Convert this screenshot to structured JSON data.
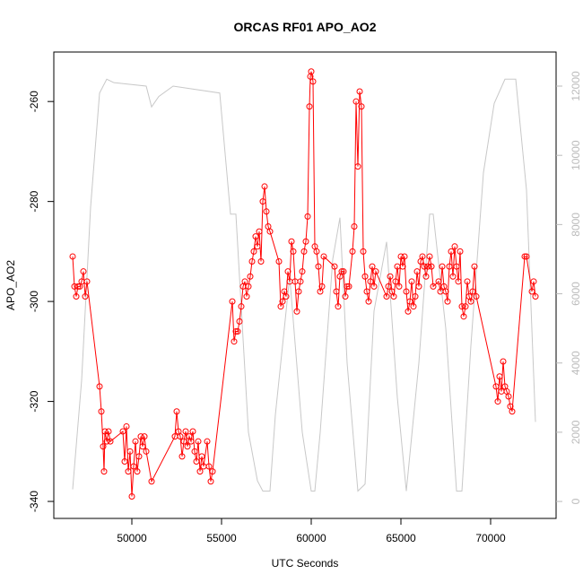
{
  "chart_data": {
    "type": "line",
    "title": "ORCAS RF01 APO_AO2",
    "xlabel": "UTC Seconds",
    "ylabel": "APO_AO2",
    "xlim": [
      45650,
      73650
    ],
    "xticks": [
      50000,
      55000,
      60000,
      65000,
      70000
    ],
    "ylim": [
      -343.4,
      -250.1
    ],
    "yticks": [
      -340,
      -320,
      -300,
      -280,
      -260
    ],
    "y2lim": [
      -490,
      12985
    ],
    "y2ticks": [
      0,
      2000,
      4000,
      6000,
      8000,
      10000,
      12000
    ],
    "series": [
      {
        "color": "#ff0000",
        "markers": true,
        "x": [
          46700,
          46800,
          46900,
          47000,
          47100,
          47200,
          47300,
          47400,
          47500,
          48200,
          48300,
          48400,
          48450,
          48500,
          48600,
          48700,
          48800,
          49500,
          49600,
          49700,
          49800,
          49900,
          50000,
          50100,
          50200,
          50300,
          50400,
          50500,
          50600,
          50700,
          50800,
          51100,
          52400,
          52500,
          52600,
          52700,
          52800,
          52900,
          53000,
          53100,
          53200,
          53300,
          53400,
          53500,
          53600,
          53700,
          53800,
          53900,
          54000,
          54200,
          54300,
          54400,
          54500,
          55600,
          55700,
          55800,
          55900,
          56000,
          56100,
          56200,
          56300,
          56400,
          56500,
          56600,
          56700,
          56800,
          56900,
          57000,
          57100,
          57200,
          57300,
          57400,
          57500,
          57600,
          57700,
          58200,
          58300,
          58400,
          58500,
          58600,
          58700,
          58800,
          58900,
          59000,
          59100,
          59200,
          59300,
          59400,
          59500,
          59600,
          59700,
          59800,
          59900,
          59950,
          60000,
          60100,
          60200,
          60300,
          60400,
          60500,
          60600,
          60700,
          61300,
          61400,
          61500,
          61600,
          61700,
          61800,
          61900,
          62000,
          62100,
          62300,
          62400,
          62500,
          62600,
          62700,
          62800,
          62900,
          63000,
          63100,
          63200,
          63300,
          63400,
          63500,
          63600,
          64200,
          64300,
          64400,
          64500,
          64600,
          64700,
          64800,
          64900,
          65000,
          65100,
          65200,
          65300,
          65400,
          65500,
          65600,
          65700,
          65800,
          65900,
          66000,
          66100,
          66200,
          66300,
          66400,
          66500,
          66600,
          66700,
          66800,
          67100,
          67200,
          67300,
          67400,
          67500,
          67600,
          67700,
          67800,
          67900,
          68000,
          68100,
          68200,
          68300,
          68400,
          68500,
          68600,
          68700,
          68800,
          68900,
          69000,
          69100,
          69200,
          70300,
          70400,
          70500,
          70600,
          70700,
          70800,
          70900,
          71000,
          71100,
          71200,
          71900,
          72000,
          72300,
          72400,
          72500
        ],
        "values": [
          -291,
          -297,
          -299,
          -297,
          -297,
          -296,
          -294,
          -299,
          -296,
          -317,
          -322,
          -329,
          -334,
          -326,
          -328,
          -326,
          -328,
          -326,
          -332,
          -325,
          -334,
          -330,
          -339,
          -333,
          -328,
          -334,
          -331,
          -327,
          -329,
          -327,
          -330,
          -336,
          -327,
          -322,
          -326,
          -327,
          -331,
          -328,
          -326,
          -329,
          -327,
          -328,
          -326,
          -330,
          -332,
          -328,
          -334,
          -331,
          -333,
          -328,
          -333,
          -336,
          -334,
          -300,
          -308,
          -306,
          -306,
          -304,
          -301,
          -297,
          -296,
          -299,
          -297,
          -295,
          -292,
          -290,
          -287,
          -289,
          -286,
          -292,
          -280,
          -277,
          -282,
          -285,
          -286,
          -292,
          -301,
          -300,
          -298,
          -299,
          -294,
          -296,
          -288,
          -290,
          -296,
          -302,
          -298,
          -296,
          -294,
          -290,
          -288,
          -283,
          -261,
          -255,
          -254,
          -256,
          -289,
          -290,
          -293,
          -298,
          -297,
          -291,
          -293,
          -298,
          -301,
          -295,
          -294,
          -294,
          -299,
          -297,
          -297,
          -290,
          -285,
          -260,
          -273,
          -258,
          -261,
          -290,
          -295,
          -298,
          -300,
          -296,
          -293,
          -297,
          -294,
          -299,
          -297,
          -295,
          -298,
          -299,
          -296,
          -293,
          -297,
          -291,
          -293,
          -291,
          -298,
          -302,
          -300,
          -296,
          -301,
          -299,
          -294,
          -297,
          -292,
          -291,
          -293,
          -295,
          -293,
          -291,
          -293,
          -297,
          -296,
          -298,
          -293,
          -297,
          -298,
          -300,
          -293,
          -290,
          -295,
          -289,
          -293,
          -296,
          -290,
          -301,
          -303,
          -301,
          -296,
          -299,
          -300,
          -298,
          -293,
          -299,
          -317,
          -320,
          -315,
          -318,
          -312,
          -317,
          -318,
          -319,
          -321,
          -322,
          -291,
          -291,
          -298,
          -296,
          -299
        ]
      },
      {
        "color": "#c8c8c8",
        "axis": "y2",
        "markers": false,
        "x": [
          46700,
          47200,
          47700,
          48200,
          48600,
          49000,
          50800,
          51100,
          51500,
          52300,
          54900,
          55500,
          55800,
          56500,
          57000,
          57300,
          57700,
          58000,
          58800,
          59500,
          60000,
          60200,
          60500,
          61200,
          61600,
          62000,
          62600,
          63000,
          63500,
          64200,
          64800,
          65300,
          66000,
          66600,
          66800,
          67500,
          68100,
          68400,
          68900,
          69600,
          70200,
          70800,
          71400,
          72000,
          72500
        ],
        "values": [
          350,
          3500,
          8500,
          11800,
          12200,
          12100,
          12000,
          11400,
          11700,
          12000,
          11800,
          8300,
          8300,
          2000,
          600,
          300,
          300,
          2500,
          6500,
          2000,
          300,
          300,
          2000,
          7000,
          8200,
          4000,
          300,
          500,
          5500,
          7500,
          3000,
          300,
          4000,
          8300,
          8300,
          5000,
          300,
          300,
          4500,
          9500,
          11500,
          12200,
          12200,
          9000,
          2300
        ]
      }
    ]
  }
}
